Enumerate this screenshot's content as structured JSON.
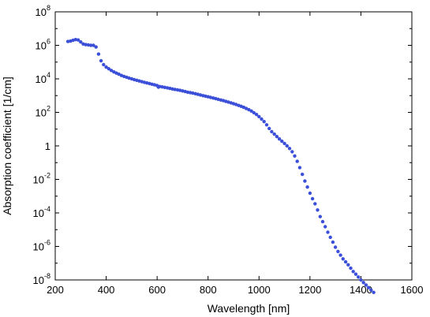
{
  "chart_data": {
    "type": "scatter",
    "xlabel": "Wavelength [nm]",
    "ylabel": "Absorption coefficient  [1/cm]",
    "xlim": [
      200,
      1600
    ],
    "ylim_log10": [
      -8,
      8
    ],
    "yscale": "log",
    "grid": false,
    "x_ticks": [
      "200",
      "400",
      "600",
      "800",
      "1000",
      "1200",
      "1400",
      "1600"
    ],
    "y_ticks": [
      {
        "exp": -8,
        "base": "10",
        "sup": "-8"
      },
      {
        "exp": -6,
        "base": "10",
        "sup": "-6"
      },
      {
        "exp": -4,
        "base": "10",
        "sup": "-4"
      },
      {
        "exp": -2,
        "base": "10",
        "sup": "-2"
      },
      {
        "exp": 0,
        "base": "1",
        "sup": ""
      },
      {
        "exp": 2,
        "base": "10",
        "sup": "2"
      },
      {
        "exp": 4,
        "base": "10",
        "sup": "4"
      },
      {
        "exp": 6,
        "base": "10",
        "sup": "6"
      },
      {
        "exp": 8,
        "base": "10",
        "sup": "8"
      }
    ],
    "marker_color": "#3b4fd8",
    "series": [
      {
        "points": [
          [
            250,
            1700000.0
          ],
          [
            260,
            1800000.0
          ],
          [
            270,
            2000000.0
          ],
          [
            280,
            2200000.0
          ],
          [
            290,
            2100000.0
          ],
          [
            300,
            1600000.0
          ],
          [
            310,
            1200000.0
          ],
          [
            320,
            1100000.0
          ],
          [
            330,
            1050000.0
          ],
          [
            340,
            1000000.0
          ],
          [
            350,
            1000000.0
          ],
          [
            360,
            800000.0
          ],
          [
            370,
            300000.0
          ],
          [
            380,
            120000.0
          ],
          [
            390,
            70000.0
          ],
          [
            400,
            50000.0
          ],
          [
            410,
            40000.0
          ],
          [
            420,
            32000.0
          ],
          [
            430,
            26000.0
          ],
          [
            440,
            22000.0
          ],
          [
            450,
            19000.0
          ],
          [
            460,
            16000.0
          ],
          [
            470,
            14000.0
          ],
          [
            480,
            12500.0
          ],
          [
            490,
            11000.0
          ],
          [
            500,
            10000.0
          ],
          [
            510,
            9000.0
          ],
          [
            520,
            8200.0
          ],
          [
            530,
            7500.0
          ],
          [
            540,
            6800.0
          ],
          [
            550,
            6200.0
          ],
          [
            560,
            5700.0
          ],
          [
            570,
            5200.0
          ],
          [
            580,
            4800.0
          ],
          [
            590,
            4400.0
          ],
          [
            600,
            4000.0
          ],
          [
            605,
            3200.0
          ],
          [
            610,
            3500.0
          ],
          [
            620,
            3300.0
          ],
          [
            630,
            3100.0
          ],
          [
            640,
            2900.0
          ],
          [
            650,
            2700.0
          ],
          [
            660,
            2500.0
          ],
          [
            670,
            2350.0
          ],
          [
            680,
            2200.0
          ],
          [
            690,
            2050.0
          ],
          [
            700,
            1900.0
          ],
          [
            710,
            1750.0
          ],
          [
            720,
            1600.0
          ],
          [
            730,
            1500.0
          ],
          [
            740,
            1400.0
          ],
          [
            750,
            1300.0
          ],
          [
            760,
            1200.0
          ],
          [
            770,
            1100.0
          ],
          [
            780,
            1000.0
          ],
          [
            790,
            920
          ],
          [
            800,
            850
          ],
          [
            810,
            780
          ],
          [
            820,
            720
          ],
          [
            830,
            660
          ],
          [
            840,
            600
          ],
          [
            850,
            550
          ],
          [
            860,
            500
          ],
          [
            870,
            450
          ],
          [
            880,
            410
          ],
          [
            890,
            370
          ],
          [
            900,
            330
          ],
          [
            910,
            295
          ],
          [
            920,
            260
          ],
          [
            930,
            230
          ],
          [
            940,
            200
          ],
          [
            950,
            170
          ],
          [
            960,
            145
          ],
          [
            970,
            120
          ],
          [
            980,
            95
          ],
          [
            990,
            75
          ],
          [
            1000,
            56
          ],
          [
            1010,
            40
          ],
          [
            1020,
            28
          ],
          [
            1030,
            18
          ],
          [
            1040,
            11
          ],
          [
            1050,
            7
          ],
          [
            1060,
            5
          ],
          [
            1070,
            3.6
          ],
          [
            1080,
            2.6
          ],
          [
            1090,
            1.9
          ],
          [
            1100,
            1.4
          ],
          [
            1110,
            1.0
          ],
          [
            1120,
            0.7
          ],
          [
            1130,
            0.45
          ],
          [
            1140,
            0.25
          ],
          [
            1150,
            0.12
          ],
          [
            1160,
            0.05
          ],
          [
            1170,
            0.02
          ],
          [
            1180,
            0.008
          ],
          [
            1190,
            0.0035
          ],
          [
            1200,
            0.0015
          ],
          [
            1210,
            0.0007
          ],
          [
            1220,
            0.00035
          ],
          [
            1230,
            0.00015
          ],
          [
            1240,
            6e-05
          ],
          [
            1250,
            3e-05
          ],
          [
            1260,
            1.5e-05
          ],
          [
            1270,
            7e-06
          ],
          [
            1280,
            3.5e-06
          ],
          [
            1290,
            1.8e-06
          ],
          [
            1300,
            9e-07
          ],
          [
            1310,
            5e-07
          ],
          [
            1320,
            3e-07
          ],
          [
            1330,
            1.8e-07
          ],
          [
            1340,
            1.2e-07
          ],
          [
            1350,
            8e-08
          ],
          [
            1360,
            5e-08
          ],
          [
            1370,
            3.2e-08
          ],
          [
            1380,
            2.2e-08
          ],
          [
            1390,
            1.5e-08
          ],
          [
            1400,
            1e-08
          ],
          [
            1410,
            7e-09
          ],
          [
            1420,
            5e-09
          ],
          [
            1430,
            3.5e-09
          ],
          [
            1440,
            2.5e-09
          ],
          [
            1450,
            1.8e-09
          ]
        ]
      }
    ]
  }
}
